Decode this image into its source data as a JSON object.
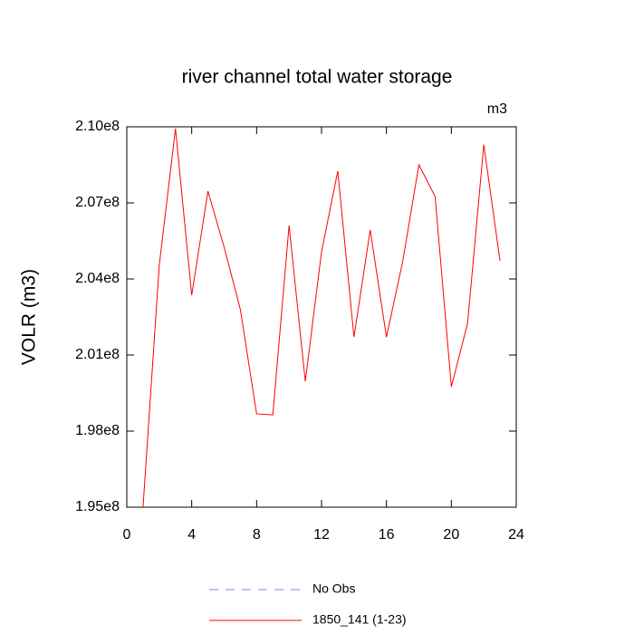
{
  "chart_data": {
    "type": "line",
    "title": "river channel total water storage",
    "units": "m3",
    "y_label": "VOLR  (m3)",
    "x": [
      1,
      2,
      3,
      4,
      5,
      6,
      7,
      8,
      9,
      10,
      11,
      12,
      13,
      14,
      15,
      16,
      17,
      18,
      19,
      20,
      21,
      22,
      23
    ],
    "series": [
      {
        "name": "No Obs",
        "color": "#8080ff",
        "dashed": true,
        "values": [
          null,
          null,
          null,
          null,
          null,
          null,
          null,
          null,
          null,
          null,
          null,
          null,
          null,
          null,
          null,
          null,
          null,
          null,
          null,
          null,
          null,
          null,
          null
        ]
      },
      {
        "name": "1850_141 (1-23)",
        "color": "#ff0000",
        "dashed": false,
        "values": [
          195000000,
          204540000,
          209930000,
          203360000,
          207460000,
          205250000,
          202790000,
          198680000,
          198640000,
          206110000,
          199960000,
          205070000,
          208250000,
          201710000,
          205930000,
          201710000,
          204680000,
          208500000,
          207250000,
          199750000,
          202250000,
          209290000,
          204710000
        ]
      }
    ],
    "xlim": [
      0,
      24
    ],
    "xticks": [
      0,
      4,
      8,
      12,
      16,
      20,
      24
    ],
    "ylim": [
      195000000,
      210000000
    ],
    "yticks": [
      {
        "value": 195000000,
        "label": "1.95e8"
      },
      {
        "value": 198000000,
        "label": "1.98e8"
      },
      {
        "value": 201000000,
        "label": "2.01e8"
      },
      {
        "value": 204000000,
        "label": "2.04e8"
      },
      {
        "value": 207000000,
        "label": "2.07e8"
      },
      {
        "value": 210000000,
        "label": "2.10e8"
      }
    ]
  }
}
